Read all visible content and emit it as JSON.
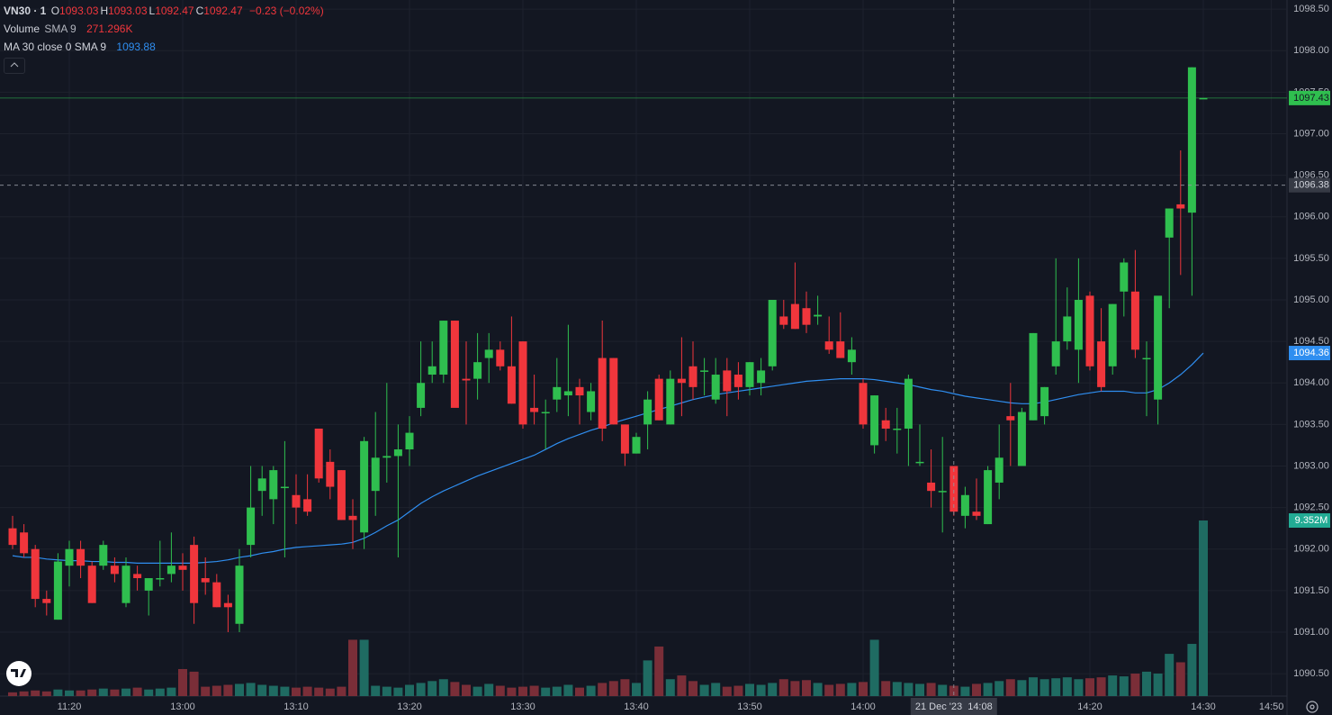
{
  "chart_data": {
    "type": "candlestick",
    "header": {
      "symbol": "VN30 · 1",
      "ohlc": [
        {
          "key": "O",
          "value": "1093.03"
        },
        {
          "key": "H",
          "value": "1093.03"
        },
        {
          "key": "L",
          "value": "1092.47"
        },
        {
          "key": "C",
          "value": "1092.47"
        }
      ],
      "change": "−0.23 (−0.02%)",
      "volume_label": "Volume",
      "volume_sma": "SMA 9",
      "volume_sma_value": "271.296K",
      "ma_label": "MA 30 close 0 SMA 9",
      "ma_value": "1093.88"
    },
    "up_color": "#2fbf4f",
    "down_color": "#f0363c",
    "open": [
      1092.25,
      1092.2,
      1092.0,
      1091.4,
      1091.15,
      1091.8,
      1092.0,
      1091.8,
      1091.8,
      1091.8,
      1091.35,
      1091.7,
      1091.5,
      1091.65,
      1091.7,
      1091.8,
      1092.05,
      1091.65,
      1091.6,
      1091.35,
      1091.1,
      1092.05,
      1092.7,
      1092.6,
      1092.75,
      1092.65,
      1092.6,
      1093.45,
      1093.05,
      1092.95,
      1092.4,
      1092.2,
      1092.7,
      1093.1,
      1093.12,
      1093.2,
      1093.7,
      1094.1,
      1094.1,
      1094.75,
      1094.05,
      1094.05,
      1094.3,
      1094.4,
      1094.2,
      1094.5,
      1093.7,
      1093.65,
      1093.8,
      1093.85,
      1093.95,
      1093.65,
      1094.3,
      1094.3,
      1093.5,
      1093.15,
      1093.5,
      1094.05,
      1093.5,
      1094.05,
      1094.2,
      1094.15,
      1093.8,
      1094.15,
      1094.1,
      1093.95,
      1094.0,
      1094.2,
      1094.8,
      1094.95,
      1094.9,
      1094.8,
      1094.5,
      1094.5,
      1094.25,
      1094.0,
      1093.25,
      1093.55,
      1093.45,
      1093.45,
      1093.05,
      1092.8,
      1092.7,
      1093.0,
      1092.4,
      1092.45,
      1092.3,
      1092.8,
      1093.6,
      1093.0,
      1093.55,
      1093.6,
      1094.2,
      1094.5,
      1094.4,
      1095.05,
      1094.5,
      1094.2,
      1095.1,
      1095.1,
      1094.3,
      1093.8,
      1095.75,
      1096.15,
      1096.05,
      1097.43
    ],
    "high": [
      1092.4,
      1092.3,
      1092.05,
      1091.5,
      1091.95,
      1092.1,
      1092.1,
      1091.85,
      1092.1,
      1091.9,
      1091.9,
      1091.8,
      1091.65,
      1092.1,
      1092.2,
      1091.95,
      1092.15,
      1091.9,
      1091.7,
      1091.45,
      1092.0,
      1093.0,
      1093.0,
      1093.0,
      1093.3,
      1092.9,
      1092.9,
      1093.45,
      1093.2,
      1092.95,
      1092.6,
      1093.35,
      1093.65,
      1094.0,
      1093.5,
      1093.6,
      1094.5,
      1094.5,
      1094.75,
      1094.75,
      1094.5,
      1094.6,
      1094.6,
      1094.5,
      1094.8,
      1094.5,
      1094.1,
      1093.8,
      1094.3,
      1094.7,
      1094.05,
      1094.0,
      1094.75,
      1094.3,
      1093.5,
      1093.4,
      1093.9,
      1094.1,
      1094.15,
      1094.55,
      1094.5,
      1094.3,
      1094.3,
      1094.3,
      1094.25,
      1094.25,
      1094.3,
      1095.0,
      1095.0,
      1095.45,
      1095.1,
      1095.05,
      1094.8,
      1094.85,
      1094.55,
      1094.05,
      1093.85,
      1093.7,
      1093.7,
      1094.1,
      1093.5,
      1093.2,
      1093.35,
      1093.0,
      1092.75,
      1092.85,
      1093.0,
      1093.5,
      1094.0,
      1093.7,
      1094.6,
      1093.95,
      1095.5,
      1095.15,
      1095.5,
      1095.1,
      1094.9,
      1094.95,
      1095.5,
      1095.6,
      1094.5,
      1095.0,
      1096.1,
      1096.8,
      1097.8,
      1097.43
    ],
    "low": [
      1092.0,
      1091.9,
      1091.3,
      1091.2,
      1091.15,
      1091.55,
      1091.65,
      1091.35,
      1091.75,
      1091.6,
      1091.3,
      1091.5,
      1091.2,
      1091.55,
      1091.6,
      1091.5,
      1091.1,
      1091.45,
      1091.3,
      1091.0,
      1091.0,
      1091.9,
      1092.4,
      1092.3,
      1091.9,
      1092.3,
      1092.4,
      1092.8,
      1092.6,
      1092.35,
      1092.0,
      1092.0,
      1092.4,
      1092.8,
      1091.9,
      1093.0,
      1093.6,
      1094.0,
      1094.0,
      1093.75,
      1093.5,
      1093.8,
      1094.0,
      1094.15,
      1093.75,
      1093.45,
      1093.5,
      1093.2,
      1093.65,
      1093.6,
      1093.5,
      1093.55,
      1093.3,
      1093.5,
      1093.0,
      1093.15,
      1093.2,
      1093.55,
      1093.5,
      1093.6,
      1093.8,
      1093.85,
      1093.75,
      1093.6,
      1093.8,
      1093.85,
      1093.85,
      1094.15,
      1094.65,
      1094.65,
      1094.6,
      1094.7,
      1094.35,
      1094.3,
      1094.1,
      1093.45,
      1093.15,
      1093.3,
      1093.15,
      1093.0,
      1093.0,
      1092.5,
      1092.2,
      1092.4,
      1092.25,
      1092.35,
      1092.3,
      1092.6,
      1093.0,
      1093.0,
      1093.55,
      1093.5,
      1094.1,
      1094.4,
      1094.0,
      1094.15,
      1093.9,
      1094.1,
      1094.8,
      1094.3,
      1093.6,
      1093.5,
      1094.9,
      1095.3,
      1095.05,
      1097.43
    ],
    "close": [
      1092.05,
      1091.95,
      1091.4,
      1091.35,
      1091.85,
      1092.0,
      1091.8,
      1091.35,
      1092.05,
      1091.7,
      1091.8,
      1091.65,
      1091.65,
      1091.65,
      1091.8,
      1091.75,
      1091.35,
      1091.6,
      1091.3,
      1091.3,
      1091.8,
      1092.5,
      1092.85,
      1092.95,
      1092.75,
      1092.5,
      1092.45,
      1092.85,
      1092.75,
      1092.35,
      1092.35,
      1093.3,
      1093.1,
      1093.12,
      1093.2,
      1093.4,
      1094.0,
      1094.2,
      1094.75,
      1093.7,
      1094.03,
      1094.25,
      1094.4,
      1094.2,
      1093.75,
      1093.5,
      1093.65,
      1093.65,
      1093.95,
      1093.9,
      1093.85,
      1093.9,
      1093.45,
      1093.5,
      1093.15,
      1093.35,
      1093.8,
      1093.55,
      1094.05,
      1094.0,
      1093.95,
      1094.15,
      1094.1,
      1093.9,
      1093.95,
      1094.25,
      1094.15,
      1095.0,
      1094.7,
      1094.65,
      1094.7,
      1094.82,
      1094.4,
      1094.3,
      1094.4,
      1093.5,
      1093.85,
      1093.45,
      1093.45,
      1094.05,
      1093.05,
      1092.7,
      1092.7,
      1092.45,
      1092.65,
      1092.4,
      1092.95,
      1093.1,
      1093.55,
      1093.65,
      1094.6,
      1093.95,
      1094.5,
      1094.8,
      1095.0,
      1094.2,
      1093.95,
      1094.95,
      1095.45,
      1094.4,
      1094.3,
      1095.05,
      1096.1,
      1096.1,
      1097.8,
      1097.43
    ],
    "ma": {
      "color": "#2f8ef0",
      "values": [
        1091.92,
        1091.9,
        1091.9,
        1091.88,
        1091.87,
        1091.86,
        1091.86,
        1091.85,
        1091.85,
        1091.84,
        1091.84,
        1091.83,
        1091.83,
        1091.83,
        1091.83,
        1091.83,
        1091.83,
        1091.84,
        1091.85,
        1091.87,
        1091.9,
        1091.92,
        1091.95,
        1091.97,
        1092.0,
        1092.02,
        1092.03,
        1092.04,
        1092.05,
        1092.06,
        1092.08,
        1092.13,
        1092.2,
        1092.28,
        1092.35,
        1092.45,
        1092.55,
        1092.63,
        1092.7,
        1092.76,
        1092.82,
        1092.88,
        1092.93,
        1092.98,
        1093.03,
        1093.08,
        1093.13,
        1093.2,
        1093.27,
        1093.33,
        1093.38,
        1093.43,
        1093.47,
        1093.52,
        1093.56,
        1093.6,
        1093.64,
        1093.68,
        1093.72,
        1093.76,
        1093.8,
        1093.83,
        1093.86,
        1093.88,
        1093.9,
        1093.92,
        1093.94,
        1093.96,
        1093.98,
        1094.0,
        1094.02,
        1094.03,
        1094.04,
        1094.05,
        1094.05,
        1094.05,
        1094.04,
        1094.02,
        1094.0,
        1093.98,
        1093.95,
        1093.92,
        1093.9,
        1093.87,
        1093.84,
        1093.82,
        1093.8,
        1093.78,
        1093.76,
        1093.75,
        1093.75,
        1093.77,
        1093.8,
        1093.83,
        1093.86,
        1093.88,
        1093.9,
        1093.9,
        1093.9,
        1093.88,
        1093.88,
        1093.92,
        1094.0,
        1094.1,
        1094.22,
        1094.36
      ]
    },
    "volume": {
      "up_color": "#1f6b62",
      "down_color": "#7a2e38",
      "ylim": [
        0,
        9352000
      ],
      "last_label": "9.352M",
      "values": [
        200000,
        250000,
        300000,
        250000,
        350000,
        300000,
        300000,
        350000,
        400000,
        350000,
        400000,
        450000,
        350000,
        400000,
        450000,
        1440000,
        1300000,
        500000,
        550000,
        600000,
        650000,
        700000,
        600000,
        550000,
        500000,
        450000,
        500000,
        450000,
        400000,
        500000,
        3000000,
        3000000,
        550000,
        500000,
        450000,
        600000,
        700000,
        800000,
        900000,
        750000,
        600000,
        500000,
        650000,
        550000,
        450000,
        500000,
        550000,
        450000,
        500000,
        600000,
        450000,
        550000,
        700000,
        800000,
        900000,
        700000,
        1900000,
        2640000,
        900000,
        1100000,
        800000,
        600000,
        700000,
        500000,
        550000,
        650000,
        600000,
        700000,
        900000,
        800000,
        850000,
        700000,
        600000,
        650000,
        700000,
        750000,
        3000000,
        800000,
        750000,
        700000,
        650000,
        700000,
        600000,
        550000,
        500000,
        650000,
        700000,
        800000,
        900000,
        850000,
        1000000,
        900000,
        950000,
        1000000,
        900000,
        950000,
        1000000,
        1100000,
        1050000,
        1200000,
        1300000,
        1200000,
        2250000,
        1800000,
        2780000,
        9352000
      ]
    },
    "last_price": 1097.43,
    "crosshair": {
      "price": 1096.38,
      "label": "21 Dec '23  14:08"
    },
    "ylim": [
      1090.23,
      1098.61
    ],
    "yticks": [
      {
        "value": 1090.5,
        "label": "1090.50"
      },
      {
        "value": 1091,
        "label": "1091.00"
      },
      {
        "value": 1091.5,
        "label": "1091.50"
      },
      {
        "value": 1092,
        "label": "1092.00"
      },
      {
        "value": 1092.5,
        "label": "1092.50"
      },
      {
        "value": 1093,
        "label": "1093.00"
      },
      {
        "value": 1093.5,
        "label": "1093.50"
      },
      {
        "value": 1094,
        "label": "1094.00"
      },
      {
        "value": 1094.5,
        "label": "1094.50"
      },
      {
        "value": 1095,
        "label": "1095.00"
      },
      {
        "value": 1095.5,
        "label": "1095.50"
      },
      {
        "value": 1096,
        "label": "1096.00"
      },
      {
        "value": 1096.5,
        "label": "1096.50"
      },
      {
        "value": 1097,
        "label": "1097.00"
      },
      {
        "value": 1097.5,
        "label": "1097.50"
      },
      {
        "value": 1098,
        "label": "1098.00"
      },
      {
        "value": 1098.5,
        "label": "1098.50"
      }
    ],
    "xticks": [
      {
        "value": 5,
        "label": "11:20"
      },
      {
        "value": 15,
        "label": "13:00"
      },
      {
        "value": 25,
        "label": "13:10"
      },
      {
        "value": 35,
        "label": "13:20"
      },
      {
        "value": 45,
        "label": "13:30"
      },
      {
        "value": 55,
        "label": "13:40"
      },
      {
        "value": 65,
        "label": "13:50"
      },
      {
        "value": 75,
        "label": "14:00"
      },
      {
        "value": 95,
        "label": "14:20"
      },
      {
        "value": 105,
        "label": "14:30"
      },
      {
        "value": 111,
        "label": "14:50"
      }
    ],
    "grid": true
  }
}
